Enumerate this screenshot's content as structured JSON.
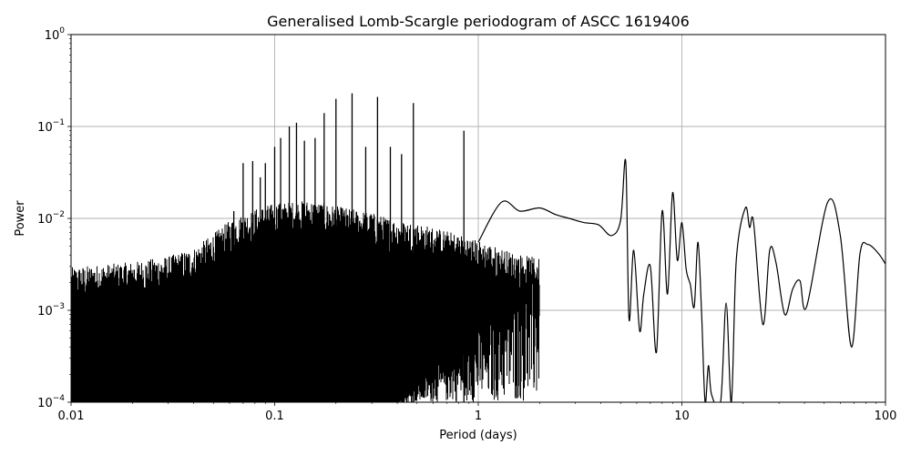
{
  "chart_data": {
    "type": "line",
    "title": "Generalised Lomb-Scargle periodogram of ASCC 1619406",
    "xlabel": "Period (days)",
    "ylabel": "Power",
    "xscale": "log",
    "yscale": "log",
    "xlim": [
      0.01,
      100
    ],
    "ylim": [
      0.0001,
      1
    ],
    "grid": true,
    "x_ticks": [
      {
        "value": 0.01,
        "label": "0.01"
      },
      {
        "value": 0.1,
        "label": "0.1"
      },
      {
        "value": 1,
        "label": "1"
      },
      {
        "value": 10,
        "label": "10"
      },
      {
        "value": 100,
        "label": "100"
      }
    ],
    "y_ticks": [
      {
        "value": 0.0001,
        "base": "10",
        "exp": "−4"
      },
      {
        "value": 0.001,
        "base": "10",
        "exp": "−3"
      },
      {
        "value": 0.01,
        "base": "10",
        "exp": "−2"
      },
      {
        "value": 0.1,
        "base": "10",
        "exp": "−1"
      },
      {
        "value": 1,
        "base": "10",
        "exp": "0"
      }
    ],
    "line_color": "#000000",
    "grid_color": "#b0b0b0",
    "dense_envelope": [
      {
        "period": 0.01,
        "power": 0.0028
      },
      {
        "period": 0.02,
        "power": 0.0032
      },
      {
        "period": 0.03,
        "power": 0.0037
      },
      {
        "period": 0.04,
        "power": 0.0045
      },
      {
        "period": 0.05,
        "power": 0.0065
      },
      {
        "period": 0.06,
        "power": 0.009
      },
      {
        "period": 0.08,
        "power": 0.012
      },
      {
        "period": 0.1,
        "power": 0.014
      },
      {
        "period": 0.15,
        "power": 0.015
      },
      {
        "period": 0.2,
        "power": 0.013
      },
      {
        "period": 0.3,
        "power": 0.011
      },
      {
        "period": 0.4,
        "power": 0.009
      },
      {
        "period": 0.5,
        "power": 0.0085
      },
      {
        "period": 0.7,
        "power": 0.007
      },
      {
        "period": 1.0,
        "power": 0.0055
      },
      {
        "period": 1.5,
        "power": 0.004
      },
      {
        "period": 2.0,
        "power": 0.0035
      }
    ],
    "dense_floor_period": 0.4,
    "peaks": [
      {
        "period": 0.063,
        "power": 0.012
      },
      {
        "period": 0.07,
        "power": 0.04
      },
      {
        "period": 0.078,
        "power": 0.042
      },
      {
        "period": 0.085,
        "power": 0.028
      },
      {
        "period": 0.09,
        "power": 0.04
      },
      {
        "period": 0.1,
        "power": 0.06
      },
      {
        "period": 0.107,
        "power": 0.075
      },
      {
        "period": 0.118,
        "power": 0.1
      },
      {
        "period": 0.128,
        "power": 0.11
      },
      {
        "period": 0.14,
        "power": 0.07
      },
      {
        "period": 0.158,
        "power": 0.075
      },
      {
        "period": 0.175,
        "power": 0.14
      },
      {
        "period": 0.2,
        "power": 0.2
      },
      {
        "period": 0.24,
        "power": 0.23
      },
      {
        "period": 0.28,
        "power": 0.06
      },
      {
        "period": 0.32,
        "power": 0.21
      },
      {
        "period": 0.37,
        "power": 0.06
      },
      {
        "period": 0.42,
        "power": 0.05
      },
      {
        "period": 0.48,
        "power": 0.18
      },
      {
        "period": 0.85,
        "power": 0.09
      }
    ],
    "series": [
      {
        "points": [
          [
            1.0,
            0.0055
          ],
          [
            1.3,
            0.015
          ],
          [
            1.6,
            0.012
          ],
          [
            2.0,
            0.013
          ],
          [
            2.4,
            0.011
          ],
          [
            2.8,
            0.01
          ],
          [
            3.3,
            0.009
          ],
          [
            3.9,
            0.0085
          ],
          [
            4.5,
            0.0065
          ],
          [
            5.0,
            0.0095
          ],
          [
            5.3,
            0.041
          ],
          [
            5.5,
            0.0008
          ],
          [
            5.8,
            0.0045
          ],
          [
            6.2,
            0.0006
          ],
          [
            6.5,
            0.0015
          ],
          [
            7.0,
            0.003
          ],
          [
            7.5,
            0.00035
          ],
          [
            8.0,
            0.012
          ],
          [
            8.5,
            0.0015
          ],
          [
            9.0,
            0.019
          ],
          [
            9.5,
            0.0035
          ],
          [
            10.0,
            0.009
          ],
          [
            10.5,
            0.0028
          ],
          [
            11.0,
            0.0019
          ],
          [
            11.5,
            0.0011
          ],
          [
            12.0,
            0.0055
          ],
          [
            12.5,
            0.0009
          ],
          [
            13.0,
            0.0001
          ],
          [
            13.5,
            0.00025
          ],
          [
            14.0,
            0.00012
          ],
          [
            15.5,
            0.0001
          ],
          [
            16.5,
            0.0012
          ],
          [
            17.5,
            0.0001
          ],
          [
            18.5,
            0.0035
          ],
          [
            20.5,
            0.013
          ],
          [
            21.5,
            0.008
          ],
          [
            22.5,
            0.009
          ],
          [
            25.0,
            0.0007
          ],
          [
            27.0,
            0.0045
          ],
          [
            29.0,
            0.0033
          ],
          [
            32.0,
            0.0009
          ],
          [
            35.0,
            0.0017
          ],
          [
            38.0,
            0.0021
          ],
          [
            41.0,
            0.0011
          ],
          [
            52.0,
            0.015
          ],
          [
            60.0,
            0.0065
          ],
          [
            68.0,
            0.0004
          ],
          [
            75.0,
            0.0042
          ],
          [
            82.0,
            0.0052
          ],
          [
            92.0,
            0.0042
          ],
          [
            100.0,
            0.0032
          ]
        ]
      }
    ]
  }
}
